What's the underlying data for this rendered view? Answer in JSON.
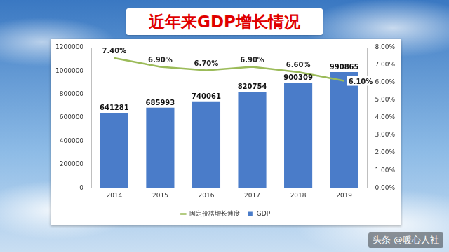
{
  "chart_data": {
    "type": "bar",
    "title": "近年来GDP增长情况",
    "categories": [
      "2014",
      "2015",
      "2016",
      "2017",
      "2018",
      "2019"
    ],
    "series": [
      {
        "name": "GDP",
        "type": "bar",
        "color": "#4a7cc9",
        "values": [
          641281,
          685993,
          740061,
          820754,
          900309,
          990865
        ]
      },
      {
        "name": "固定价格增长速度",
        "type": "line",
        "color": "#9bbb59",
        "axis": "y2",
        "values": [
          7.4,
          6.9,
          6.7,
          6.9,
          6.6,
          6.1
        ],
        "value_labels": [
          "7.40%",
          "6.90%",
          "6.70%",
          "6.90%",
          "6.60%",
          "6.10%"
        ]
      }
    ],
    "ylim": [
      0,
      1200000
    ],
    "yticks": [
      0,
      200000,
      400000,
      600000,
      800000,
      1000000,
      1200000
    ],
    "y2lim": [
      0,
      8
    ],
    "y2ticks": [
      {
        "value": 0,
        "label": "0.00%"
      },
      {
        "value": 1,
        "label": "1.00%"
      },
      {
        "value": 2,
        "label": "2.00%"
      },
      {
        "value": 3,
        "label": "3.00%"
      },
      {
        "value": 4,
        "label": "4.00%"
      },
      {
        "value": 5,
        "label": "5.00%"
      },
      {
        "value": 6,
        "label": "6.00%"
      },
      {
        "value": 7,
        "label": "7.00%"
      },
      {
        "value": 8,
        "label": "8.00%"
      }
    ],
    "data_labels": true,
    "grid": false,
    "legend": "bottom"
  },
  "watermark": "头条 @暖心人社"
}
